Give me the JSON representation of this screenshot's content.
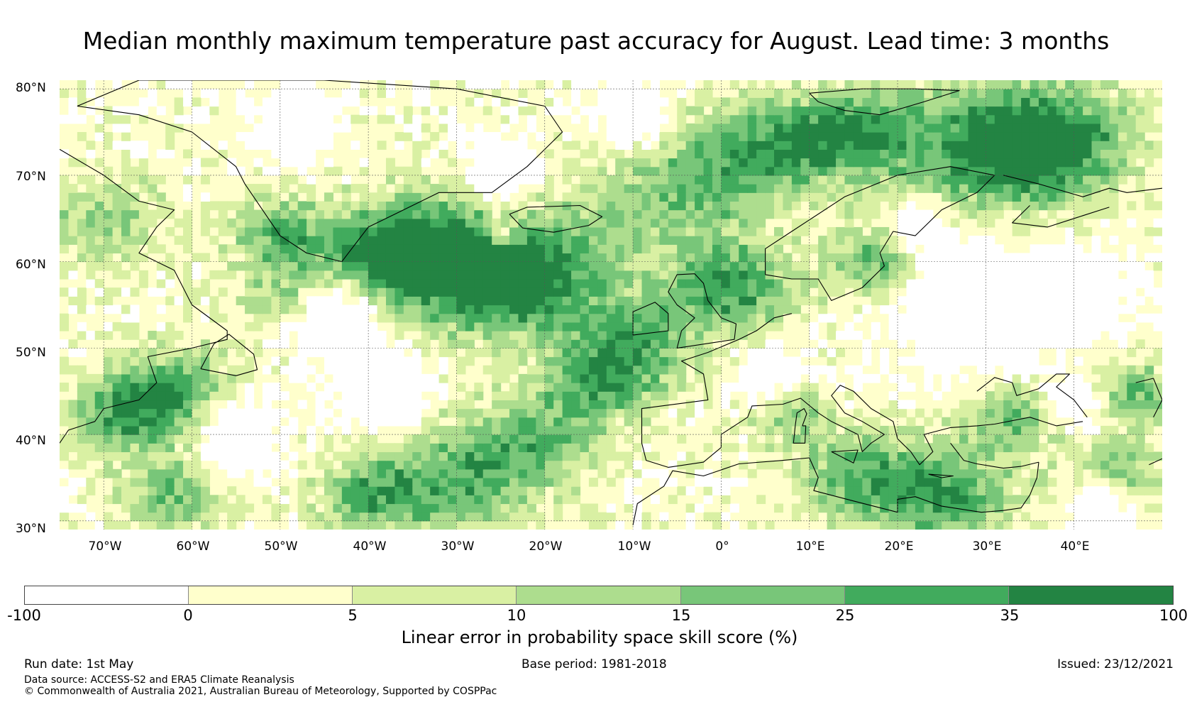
{
  "title": "Median monthly maximum temperature past accuracy for August. Lead time: 3 months",
  "map": {
    "lat_labels": [
      "80°N",
      "70°N",
      "60°N",
      "50°N",
      "40°N",
      "30°N"
    ],
    "lon_labels": [
      "70°W",
      "60°W",
      "50°W",
      "40°W",
      "30°W",
      "20°W",
      "10°W",
      "0°",
      "10°E",
      "20°E",
      "30°E",
      "40°E"
    ],
    "lat_range": [
      29,
      81
    ],
    "lon_range": [
      -75,
      50
    ],
    "graticule_lat": [
      80,
      70,
      60,
      50,
      40,
      30
    ],
    "graticule_lon": [
      -70,
      -60,
      -50,
      -40,
      -30,
      -20,
      -10,
      0,
      10,
      20,
      30,
      40
    ]
  },
  "colorbar": {
    "boundaries": [
      "-100",
      "0",
      "5",
      "10",
      "15",
      "25",
      "35",
      "100"
    ],
    "colors": [
      "#ffffff",
      "#ffffcc",
      "#d9f0a3",
      "#addd8e",
      "#78c679",
      "#41ab5d",
      "#238443"
    ],
    "label": "Linear error in probability space skill score (%)"
  },
  "footer": {
    "run_date": "Run date: 1st May",
    "base_period": "Base period: 1981-2018",
    "issued": "Issued: 23/12/2021",
    "data_source": "Data source: ACCESS-S2 and ERA5 Climate Reanalysis",
    "copyright": "© Commonwealth of Australia 2021, Australian Bureau of Meteorology, Supported by COSPPac"
  }
}
